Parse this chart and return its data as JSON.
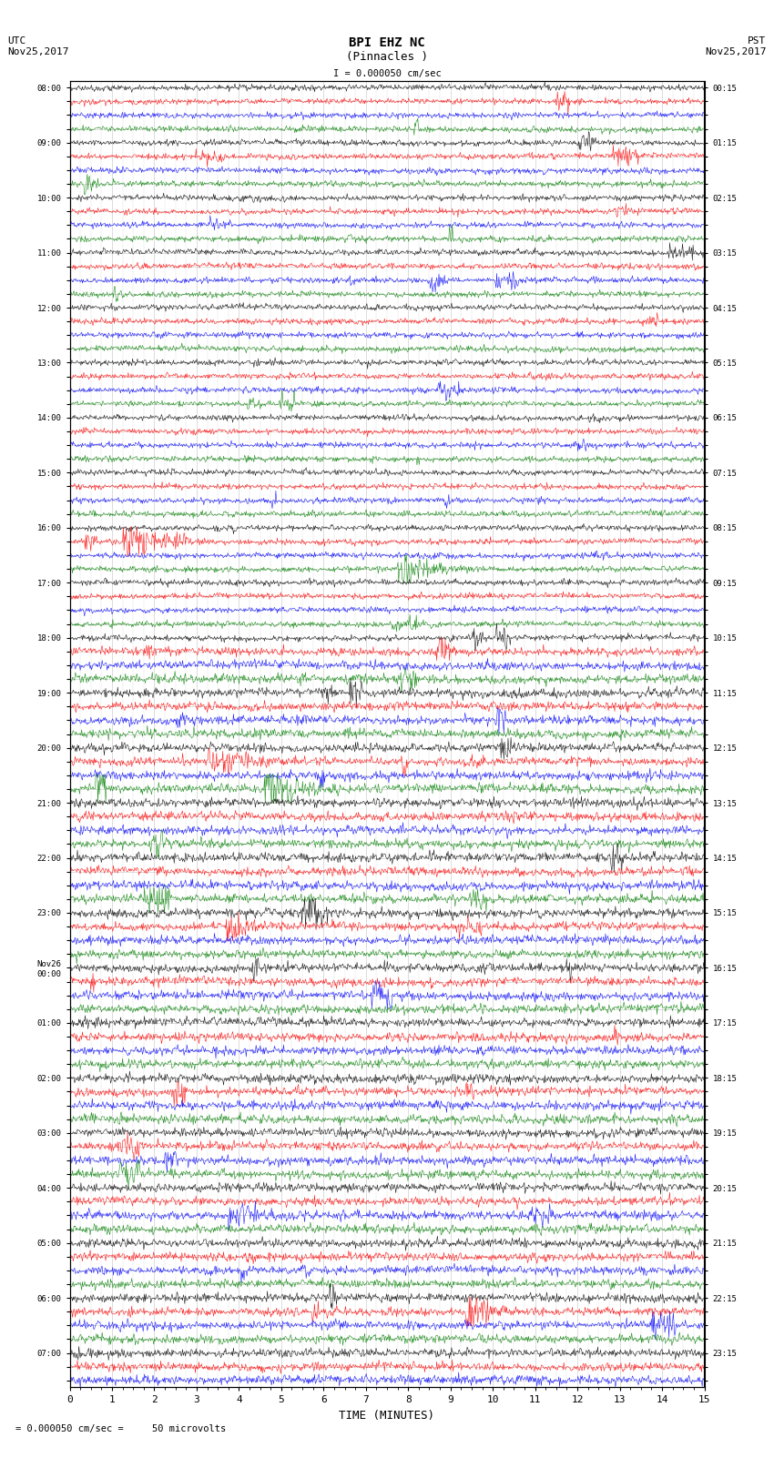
{
  "title_line1": "BPI EHZ NC",
  "title_line2": "(Pinnacles )",
  "scale_label": "I = 0.000050 cm/sec",
  "left_label": "UTC\nNov25,2017",
  "right_label": "PST\nNov25,2017",
  "bottom_label": "TIME (MINUTES)",
  "footer_label": "= 0.000050 cm/sec =     50 microvolts",
  "utc_times": [
    "08:00",
    "",
    "",
    "",
    "09:00",
    "",
    "",
    "",
    "10:00",
    "",
    "",
    "",
    "11:00",
    "",
    "",
    "",
    "12:00",
    "",
    "",
    "",
    "13:00",
    "",
    "",
    "",
    "14:00",
    "",
    "",
    "",
    "15:00",
    "",
    "",
    "",
    "16:00",
    "",
    "",
    "",
    "17:00",
    "",
    "",
    "",
    "18:00",
    "",
    "",
    "",
    "19:00",
    "",
    "",
    "",
    "20:00",
    "",
    "",
    "",
    "21:00",
    "",
    "",
    "",
    "22:00",
    "",
    "",
    "",
    "23:00",
    "",
    "",
    "",
    "Nov26\n00:00",
    "",
    "",
    "",
    "01:00",
    "",
    "",
    "",
    "02:00",
    "",
    "",
    "",
    "03:00",
    "",
    "",
    "",
    "04:00",
    "",
    "",
    "",
    "05:00",
    "",
    "",
    "",
    "06:00",
    "",
    "",
    "",
    "07:00",
    "",
    ""
  ],
  "pst_times": [
    "00:15",
    "",
    "",
    "",
    "01:15",
    "",
    "",
    "",
    "02:15",
    "",
    "",
    "",
    "03:15",
    "",
    "",
    "",
    "04:15",
    "",
    "",
    "",
    "05:15",
    "",
    "",
    "",
    "06:15",
    "",
    "",
    "",
    "07:15",
    "",
    "",
    "",
    "08:15",
    "",
    "",
    "",
    "09:15",
    "",
    "",
    "",
    "10:15",
    "",
    "",
    "",
    "11:15",
    "",
    "",
    "",
    "12:15",
    "",
    "",
    "",
    "13:15",
    "",
    "",
    "",
    "14:15",
    "",
    "",
    "",
    "15:15",
    "",
    "",
    "",
    "16:15",
    "",
    "",
    "",
    "17:15",
    "",
    "",
    "",
    "18:15",
    "",
    "",
    "",
    "19:15",
    "",
    "",
    "",
    "20:15",
    "",
    "",
    "",
    "21:15",
    "",
    "",
    "",
    "22:15",
    "",
    "",
    "",
    "23:15",
    "",
    ""
  ],
  "num_traces": 95,
  "trace_duration_minutes": 15,
  "samples_per_trace": 900,
  "colors_cycle": [
    "black",
    "red",
    "blue",
    "green"
  ],
  "background_color": "white",
  "grid_color": "#aaaaaa",
  "noise_amplitude": 0.15
}
